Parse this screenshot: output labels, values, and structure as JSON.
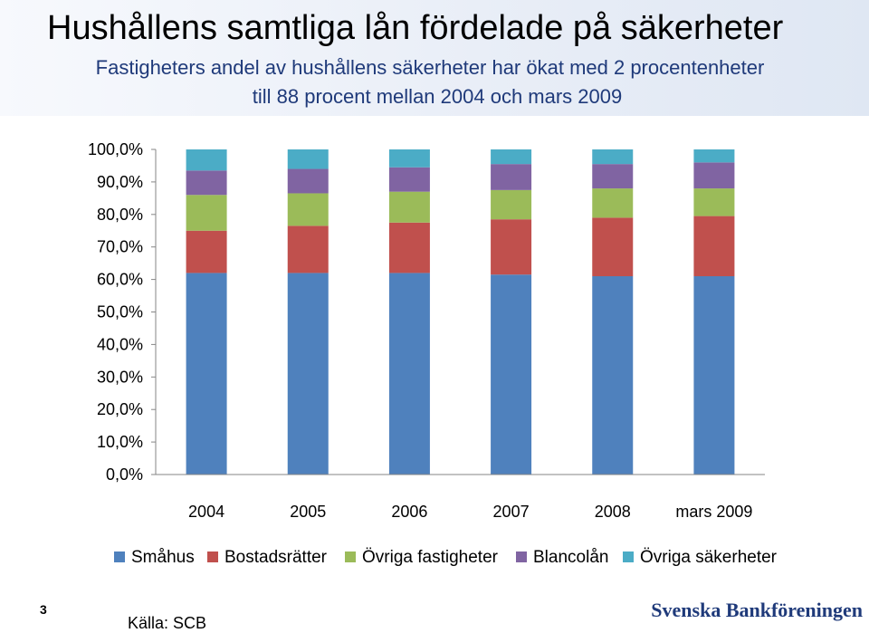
{
  "slide": {
    "title": "Hushållens samtliga lån fördelade på säkerheter",
    "subtitle_line1": "Fastigheters andel av hushållens säkerheter har ökat med 2 procentenheter",
    "subtitle_line2": "till 88 procent mellan 2004 och mars 2009",
    "page_number": "3",
    "source": "Källa: SCB",
    "brand": "Svenska Bankföreningen"
  },
  "colors": {
    "Småhus": "#4f81bd",
    "Bostadsrätter": "#c0504d",
    "Övriga fastigheter": "#9bbb59",
    "Blancolån": "#8064a2",
    "Övriga säkerheter": "#4bacc6"
  },
  "chart_data": {
    "type": "bar",
    "stacked": true,
    "categories": [
      "2004",
      "2005",
      "2006",
      "2007",
      "2008",
      "mars 2009"
    ],
    "series": [
      {
        "name": "Småhus",
        "values": [
          62.0,
          62.0,
          62.0,
          61.5,
          61.0,
          61.0
        ]
      },
      {
        "name": "Bostadsrätter",
        "values": [
          13.0,
          14.5,
          15.5,
          17.0,
          18.0,
          18.5
        ]
      },
      {
        "name": "Övriga fastigheter",
        "values": [
          11.0,
          10.0,
          9.5,
          9.0,
          9.0,
          8.5
        ]
      },
      {
        "name": "Blancolån",
        "values": [
          7.5,
          7.5,
          7.5,
          8.0,
          7.5,
          8.0
        ]
      },
      {
        "name": "Övriga säkerheter",
        "values": [
          6.5,
          6.0,
          5.5,
          4.5,
          4.5,
          4.0
        ]
      }
    ],
    "yticks": [
      "0,0%",
      "10,0%",
      "20,0%",
      "30,0%",
      "40,0%",
      "50,0%",
      "60,0%",
      "70,0%",
      "80,0%",
      "90,0%",
      "100,0%"
    ],
    "ylim": [
      0,
      100
    ],
    "legend_position": "bottom",
    "grid": false
  }
}
